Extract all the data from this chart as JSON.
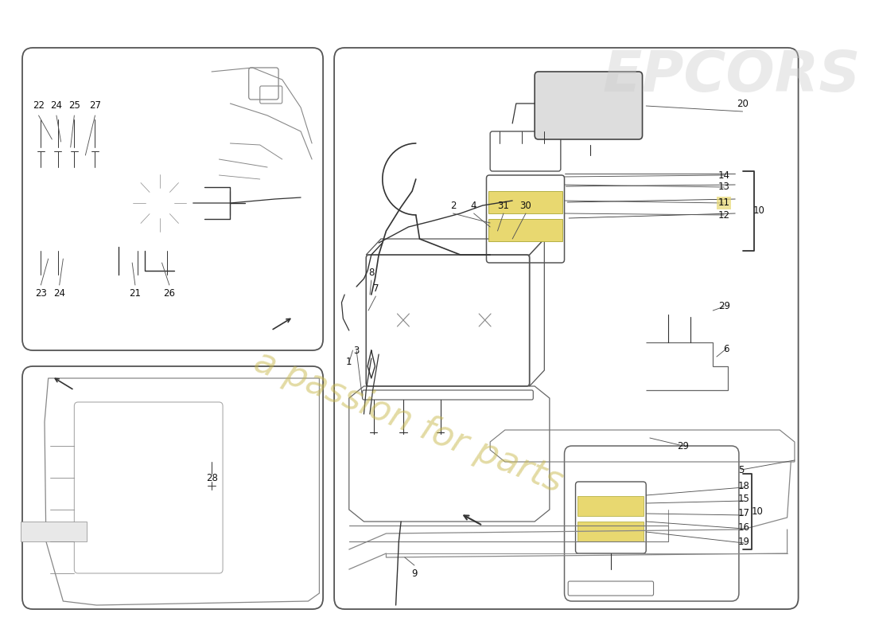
{
  "bg": "#ffffff",
  "line_color": "#333333",
  "light_line": "#888888",
  "watermark_text": "a passion for parts",
  "watermark_color": "#c8b84a",
  "watermark_alpha": 0.5,
  "logo_text": "EPCORS",
  "logo_color": "#cccccc",
  "logo_alpha": 0.4,
  "yellow_highlight": "#e8d870",
  "fig_w": 11.0,
  "fig_h": 8.0,
  "dpi": 100
}
